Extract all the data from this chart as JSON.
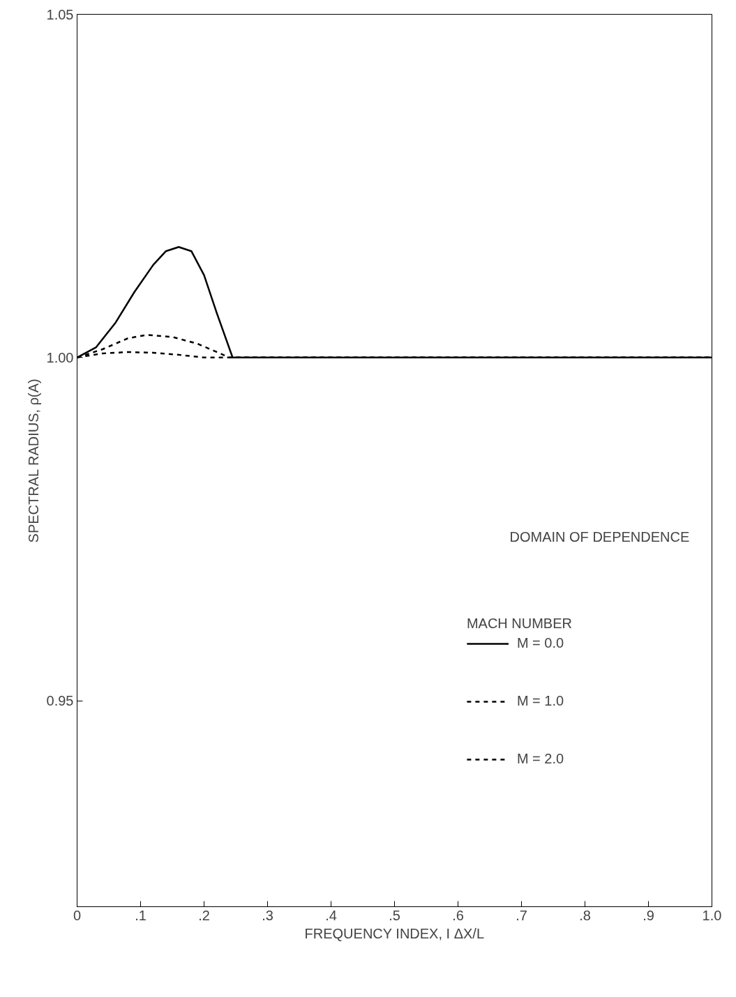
{
  "chart_data": {
    "type": "line",
    "xlabel": "FREQUENCY INDEX, I ΔX/L",
    "ylabel": "SPECTRAL RADIUS, ρ(A)",
    "legend_title": "MACH NUMBER",
    "xlim": [
      0,
      1.0
    ],
    "ylim": [
      0.92,
      1.05
    ],
    "xticks": [
      0,
      {
        "value": 0.1,
        "label": ".1"
      },
      {
        "value": 0.2,
        "label": ".2"
      },
      {
        "value": 0.3,
        "label": ".3"
      },
      {
        "value": 0.4,
        "label": ".4"
      },
      {
        "value": 0.5,
        "label": ".5"
      },
      {
        "value": 0.6,
        "label": ".6"
      },
      {
        "value": 0.7,
        "label": ".7"
      },
      {
        "value": 0.8,
        "label": ".8"
      },
      {
        "value": 0.9,
        "label": ".9"
      },
      {
        "value": 1.0,
        "label": "1.0"
      }
    ],
    "yticks": [
      0.95,
      {
        "value": 1.0,
        "label": "1.00"
      },
      1.05
    ],
    "grid": false,
    "legend": "bottom right",
    "annotations": [
      "DOMAIN OF DEPENDENCE"
    ],
    "series": [
      {
        "name": "M = 0.0",
        "color": "#000000",
        "line_style": "solid",
        "x": [
          0,
          0.03,
          0.06,
          0.09,
          0.12,
          0.14,
          0.16,
          0.18,
          0.2,
          0.22,
          0.245,
          0.3,
          1.0
        ],
        "values": [
          1.0,
          1.0015,
          1.005,
          1.0095,
          1.0135,
          1.0155,
          1.0161,
          1.0155,
          1.012,
          1.0065,
          1.0,
          1.0,
          1.0
        ]
      },
      {
        "name": "M = 1.0",
        "color": "#000000",
        "line_style": "dashed",
        "x": [
          0,
          0.04,
          0.08,
          0.11,
          0.15,
          0.19,
          0.22,
          0.24,
          1.0
        ],
        "values": [
          1.0,
          1.0012,
          1.0028,
          1.0033,
          1.003,
          1.002,
          1.0008,
          1.0,
          1.0
        ]
      },
      {
        "name": "M = 2.0",
        "color": "#000000",
        "line_style": "dashed",
        "x": [
          0,
          0.04,
          0.08,
          0.12,
          0.16,
          0.2,
          1.0
        ],
        "values": [
          1.0,
          1.0006,
          1.0008,
          1.0007,
          1.0004,
          1.0,
          1.0
        ]
      }
    ]
  }
}
